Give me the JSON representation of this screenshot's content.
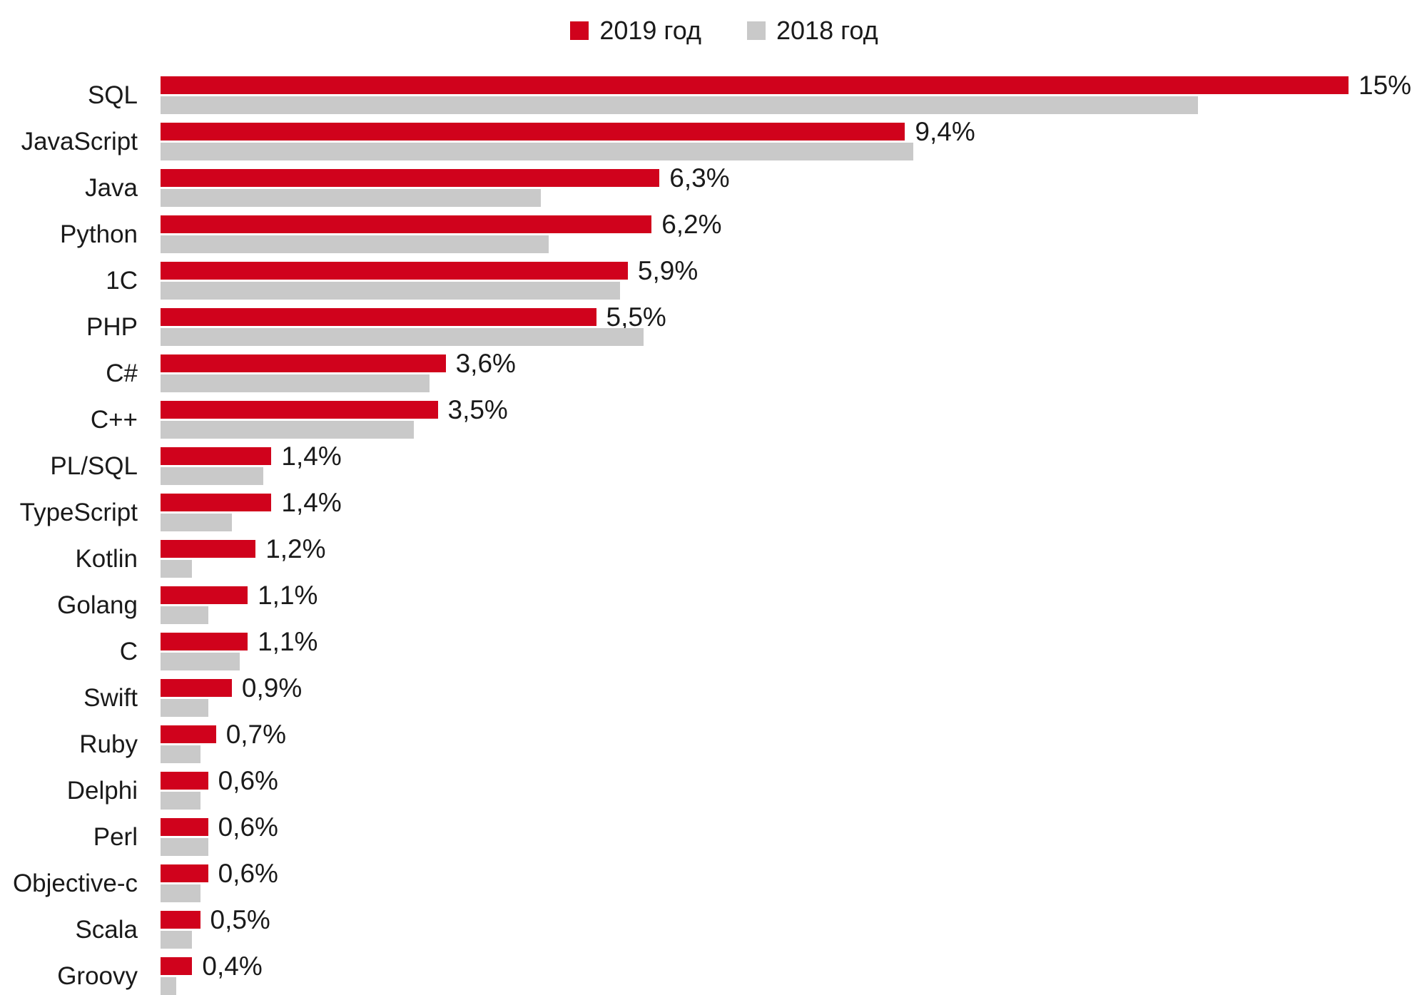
{
  "legend": {
    "items": [
      {
        "label": "2019 год",
        "color": "#d0021c"
      },
      {
        "label": "2018 год",
        "color": "#c9c9c9"
      }
    ]
  },
  "chart_data": {
    "type": "bar",
    "orientation": "horizontal",
    "title": "",
    "xlabel": "",
    "ylabel": "",
    "grid": false,
    "legend_position": "top-center",
    "xlim": [
      0,
      15.6
    ],
    "unit": "%",
    "decimal_separator": ",",
    "categories": [
      "SQL",
      "JavaScript",
      "Java",
      "Python",
      "1C",
      "PHP",
      "C#",
      "C++",
      "PL/SQL",
      "TypeScript",
      "Kotlin",
      "Golang",
      "C",
      "Swift",
      "Ruby",
      "Delphi",
      "Perl",
      "Objective-c",
      "Scala",
      "Groovy"
    ],
    "series": [
      {
        "name": "2019 год",
        "color": "#d0021c",
        "values": [
          15,
          9.4,
          6.3,
          6.2,
          5.9,
          5.5,
          3.6,
          3.5,
          1.4,
          1.4,
          1.2,
          1.1,
          1.1,
          0.9,
          0.7,
          0.6,
          0.6,
          0.6,
          0.5,
          0.4
        ],
        "value_labels": [
          "15%",
          "9,4%",
          "6,3%",
          "6,2%",
          "5,9%",
          "5,5%",
          "3,6%",
          "3,5%",
          "1,4%",
          "1,4%",
          "1,2%",
          "1,1%",
          "1,1%",
          "0,9%",
          "0,7%",
          "0,6%",
          "0,6%",
          "0,6%",
          "0,5%",
          "0,4%"
        ]
      },
      {
        "name": "2018 год",
        "color": "#c9c9c9",
        "values": [
          13.1,
          9.5,
          4.8,
          4.9,
          5.8,
          6.1,
          3.4,
          3.2,
          1.3,
          0.9,
          0.4,
          0.6,
          1.0,
          0.6,
          0.5,
          0.5,
          0.6,
          0.5,
          0.4,
          0.2
        ],
        "value_labels": []
      }
    ]
  }
}
